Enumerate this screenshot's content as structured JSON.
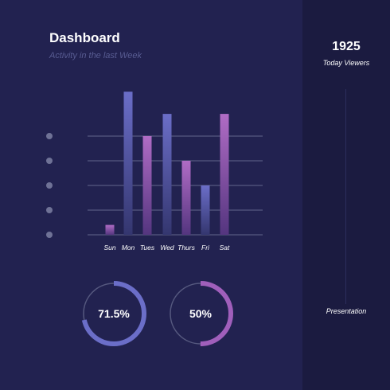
{
  "header": {
    "title": "Dashboard",
    "subtitle": "Activity in the last Week"
  },
  "sidebar": {
    "viewers_value": "1925",
    "viewers_label": "Today Viewers",
    "presentation_label": "Presentation"
  },
  "colors": {
    "background": "#222250",
    "sidebar_background": "#1b1b40",
    "bar_blue_top": "#6b6ec8",
    "bar_blue_bottom": "#34366f",
    "bar_purple_top": "#b06cc5",
    "bar_purple_bottom": "#54357f",
    "ring_track": "#56597f",
    "ring_blue": "#6b6ec8",
    "ring_purple": "#a05fbb"
  },
  "chart_data": {
    "type": "bar",
    "categories": [
      "Sun",
      "Mon",
      "Tues",
      "Wed",
      "Thurs",
      "Fri",
      "Sat"
    ],
    "values": [
      0.4,
      5.8,
      4.0,
      4.9,
      3.0,
      2.0,
      4.9
    ],
    "bar_colors": [
      "purple",
      "blue",
      "purple",
      "blue",
      "purple",
      "blue",
      "purple"
    ],
    "ylim": [
      0,
      6
    ],
    "gridlines": [
      1,
      2,
      3,
      4
    ],
    "grid": true,
    "legend": "none"
  },
  "rings": [
    {
      "value": 0.715,
      "label": "71.5%",
      "color": "blue"
    },
    {
      "value": 0.5,
      "label": "50%",
      "color": "purple"
    }
  ]
}
